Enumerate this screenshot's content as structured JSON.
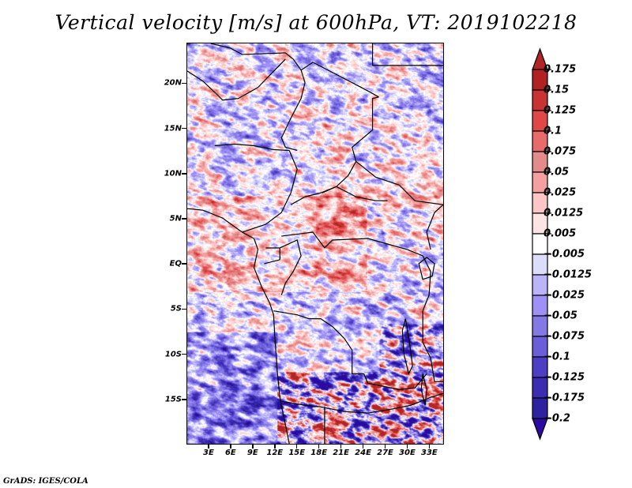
{
  "title": "Vertical velocity [m/s] at 600hPa, VT: 2019102218",
  "footer": "GrADS: IGES/COLA",
  "map": {
    "variable": "Vertical velocity",
    "units": "m/s",
    "level": "600hPa",
    "valid_time": "2019102218",
    "lon_range": [
      0,
      35
    ],
    "lat_range": [
      -20,
      24.5
    ],
    "lat_ticks": [
      {
        "value": 20,
        "label": "20N"
      },
      {
        "value": 15,
        "label": "15N"
      },
      {
        "value": 10,
        "label": "10N"
      },
      {
        "value": 5,
        "label": "5N"
      },
      {
        "value": 0,
        "label": "EQ"
      },
      {
        "value": -5,
        "label": "5S"
      },
      {
        "value": -10,
        "label": "10S"
      },
      {
        "value": -15,
        "label": "15S"
      }
    ],
    "lon_ticks": [
      {
        "value": 3,
        "label": "3E"
      },
      {
        "value": 6,
        "label": "6E"
      },
      {
        "value": 9,
        "label": "9E"
      },
      {
        "value": 12,
        "label": "12E"
      },
      {
        "value": 15,
        "label": "15E"
      },
      {
        "value": 18,
        "label": "18E"
      },
      {
        "value": 21,
        "label": "21E"
      },
      {
        "value": 24,
        "label": "24E"
      },
      {
        "value": 27,
        "label": "27E"
      },
      {
        "value": 30,
        "label": "30E"
      },
      {
        "value": 33,
        "label": "33E"
      }
    ]
  },
  "colorbar": {
    "levels": [
      {
        "label": "0.175",
        "color": "#b22222"
      },
      {
        "label": "0.15",
        "color": "#c93333"
      },
      {
        "label": "0.125",
        "color": "#e04848"
      },
      {
        "label": "0.1",
        "color": "#e86a6a"
      },
      {
        "label": "0.075",
        "color": "#e38a8a"
      },
      {
        "label": "0.05",
        "color": "#f4a0a0"
      },
      {
        "label": "0.025",
        "color": "#fcc6c6"
      },
      {
        "label": "0.0125",
        "color": "#fde4e4"
      },
      {
        "label": "0.005",
        "color": "#ffffff"
      },
      {
        "label": "-0.005",
        "color": "#dcdcfb"
      },
      {
        "label": "-0.0125",
        "color": "#bcb4fb"
      },
      {
        "label": "-0.025",
        "color": "#9e90f5"
      },
      {
        "label": "-0.05",
        "color": "#8478e6"
      },
      {
        "label": "-0.075",
        "color": "#6c5ed8"
      },
      {
        "label": "-0.1",
        "color": "#4e3ec6"
      },
      {
        "label": "-0.125",
        "color": "#3c2cb4"
      },
      {
        "label": "-0.175",
        "color": "#2e22a0"
      },
      {
        "label": "-0.2",
        "color": ""
      }
    ],
    "top_arrow_color": "#b02626",
    "bottom_arrow_color": "#2a0aa0",
    "box_colors_top_to_bottom": [
      "#b22222",
      "#c93333",
      "#e04848",
      "#e86a6a",
      "#e38a8a",
      "#f4a0a0",
      "#fcc6c6",
      "#fde4e4",
      "#ffffff",
      "#dcdcfb",
      "#bcb4fb",
      "#9e90f5",
      "#8478e6",
      "#6c5ed8",
      "#4e3ec6",
      "#3c2cb4",
      "#2e22a0"
    ]
  }
}
